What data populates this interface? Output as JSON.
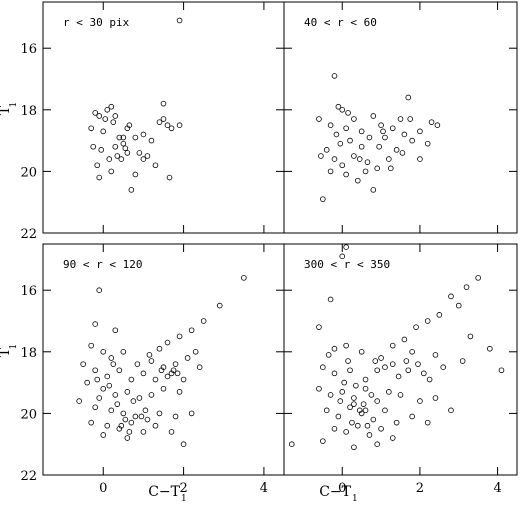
{
  "chart_data": {
    "type": "scatter",
    "layout": "2x2 grid of panels with shared axes",
    "xlabel": {
      "main": "C−T",
      "sub": "1"
    },
    "ylabel": {
      "main": "T",
      "sub": "1"
    },
    "xlim": [
      -1.5,
      4.5
    ],
    "ylim": [
      22,
      14.5
    ],
    "y_inverted": true,
    "xticks": [
      0,
      2,
      4
    ],
    "yticks": [
      16,
      18,
      20,
      22
    ],
    "xtick_labels": [
      "0",
      "2",
      "4"
    ],
    "ytick_labels": [
      "16",
      "18",
      "20",
      "22"
    ],
    "marker": "open-circle",
    "grid": false,
    "panels": [
      {
        "label": "r < 30 pix",
        "points": [
          [
            1.9,
            15.1
          ],
          [
            -0.2,
            18.1
          ],
          [
            -0.1,
            18.2
          ],
          [
            0.1,
            18.0
          ],
          [
            0.2,
            17.9
          ],
          [
            0.05,
            18.3
          ],
          [
            0.25,
            18.4
          ],
          [
            -0.3,
            18.6
          ],
          [
            0.0,
            18.7
          ],
          [
            0.4,
            18.9
          ],
          [
            0.5,
            19.1
          ],
          [
            0.55,
            19.25
          ],
          [
            0.6,
            19.4
          ],
          [
            0.3,
            19.2
          ],
          [
            0.15,
            19.6
          ],
          [
            -0.15,
            19.8
          ],
          [
            -0.05,
            19.3
          ],
          [
            0.35,
            19.5
          ],
          [
            0.6,
            18.6
          ],
          [
            0.8,
            18.9
          ],
          [
            1.0,
            18.8
          ],
          [
            1.2,
            19.0
          ],
          [
            1.1,
            19.5
          ],
          [
            1.3,
            19.8
          ],
          [
            1.4,
            18.4
          ],
          [
            1.5,
            18.3
          ],
          [
            1.6,
            18.5
          ],
          [
            1.7,
            18.6
          ],
          [
            1.5,
            17.8
          ],
          [
            1.9,
            18.5
          ],
          [
            1.65,
            20.2
          ],
          [
            0.7,
            20.6
          ],
          [
            0.2,
            20.0
          ],
          [
            -0.1,
            20.2
          ],
          [
            0.45,
            19.6
          ],
          [
            0.9,
            19.4
          ],
          [
            0.8,
            20.1
          ],
          [
            -0.25,
            19.2
          ],
          [
            0.65,
            18.5
          ],
          [
            1.0,
            19.6
          ],
          [
            0.3,
            18.2
          ],
          [
            0.5,
            18.9
          ]
        ]
      },
      {
        "label": "40 < r < 60",
        "points": [
          [
            -0.2,
            16.9
          ],
          [
            1.7,
            17.6
          ],
          [
            -0.6,
            18.3
          ],
          [
            -0.3,
            18.5
          ],
          [
            -0.1,
            17.9
          ],
          [
            0.0,
            18.0
          ],
          [
            0.1,
            18.6
          ],
          [
            0.3,
            18.3
          ],
          [
            0.5,
            18.7
          ],
          [
            0.2,
            19.0
          ],
          [
            -0.4,
            19.3
          ],
          [
            -0.2,
            19.6
          ],
          [
            0.0,
            19.8
          ],
          [
            0.3,
            19.5
          ],
          [
            0.5,
            19.2
          ],
          [
            0.7,
            18.9
          ],
          [
            0.8,
            18.2
          ],
          [
            1.0,
            18.5
          ],
          [
            1.1,
            18.9
          ],
          [
            1.3,
            18.6
          ],
          [
            1.5,
            18.3
          ],
          [
            1.6,
            18.8
          ],
          [
            1.8,
            19.0
          ],
          [
            2.0,
            18.7
          ],
          [
            2.3,
            18.4
          ],
          [
            2.2,
            19.1
          ],
          [
            2.0,
            19.6
          ],
          [
            1.4,
            19.3
          ],
          [
            1.2,
            19.6
          ],
          [
            0.9,
            19.9
          ],
          [
            0.6,
            20.0
          ],
          [
            0.4,
            20.3
          ],
          [
            0.1,
            20.1
          ],
          [
            -0.3,
            20.0
          ],
          [
            -0.55,
            19.5
          ],
          [
            -0.5,
            20.9
          ],
          [
            0.8,
            20.6
          ],
          [
            1.25,
            19.9
          ],
          [
            1.55,
            19.4
          ],
          [
            2.45,
            18.5
          ],
          [
            0.15,
            18.1
          ],
          [
            -0.15,
            18.8
          ],
          [
            0.45,
            19.6
          ],
          [
            0.95,
            19.2
          ],
          [
            1.75,
            18.3
          ],
          [
            0.65,
            19.7
          ],
          [
            -0.05,
            19.1
          ],
          [
            1.05,
            18.7
          ]
        ]
      },
      {
        "label": "90 < r < 120",
        "points": [
          [
            3.5,
            15.6
          ],
          [
            -0.1,
            16.0
          ],
          [
            2.9,
            16.5
          ],
          [
            -0.2,
            17.1
          ],
          [
            0.3,
            17.3
          ],
          [
            2.5,
            17.0
          ],
          [
            2.2,
            17.3
          ],
          [
            1.9,
            17.5
          ],
          [
            1.6,
            17.7
          ],
          [
            1.4,
            17.9
          ],
          [
            -0.3,
            17.8
          ],
          [
            0.0,
            18.0
          ],
          [
            0.2,
            18.2
          ],
          [
            0.5,
            18.0
          ],
          [
            1.2,
            18.3
          ],
          [
            1.5,
            18.5
          ],
          [
            1.8,
            18.4
          ],
          [
            2.1,
            18.2
          ],
          [
            2.3,
            18.0
          ],
          [
            -0.5,
            18.4
          ],
          [
            -0.2,
            18.6
          ],
          [
            0.1,
            18.8
          ],
          [
            0.4,
            18.6
          ],
          [
            0.7,
            18.9
          ],
          [
            1.0,
            18.7
          ],
          [
            1.3,
            18.9
          ],
          [
            1.7,
            18.7
          ],
          [
            2.0,
            18.9
          ],
          [
            -0.4,
            19.0
          ],
          [
            0.0,
            19.2
          ],
          [
            0.3,
            19.4
          ],
          [
            0.6,
            19.3
          ],
          [
            0.9,
            19.5
          ],
          [
            1.2,
            19.4
          ],
          [
            1.5,
            19.2
          ],
          [
            1.9,
            19.3
          ],
          [
            -0.6,
            19.6
          ],
          [
            -0.2,
            19.8
          ],
          [
            0.2,
            19.9
          ],
          [
            0.5,
            20.0
          ],
          [
            0.8,
            20.1
          ],
          [
            1.1,
            20.2
          ],
          [
            1.4,
            20.0
          ],
          [
            1.8,
            20.1
          ],
          [
            2.2,
            20.0
          ],
          [
            -0.3,
            20.3
          ],
          [
            0.1,
            20.4
          ],
          [
            0.4,
            20.5
          ],
          [
            0.7,
            20.3
          ],
          [
            1.0,
            20.6
          ],
          [
            1.3,
            20.4
          ],
          [
            0.6,
            20.8
          ],
          [
            1.7,
            20.6
          ],
          [
            2.0,
            21.0
          ],
          [
            0.0,
            20.7
          ],
          [
            -0.1,
            19.5
          ],
          [
            0.35,
            19.7
          ],
          [
            0.55,
            20.2
          ],
          [
            0.75,
            19.6
          ],
          [
            1.05,
            19.9
          ],
          [
            1.6,
            18.8
          ],
          [
            1.75,
            18.6
          ],
          [
            1.85,
            18.7
          ],
          [
            0.15,
            19.1
          ],
          [
            -0.15,
            18.9
          ],
          [
            0.25,
            18.4
          ],
          [
            0.85,
            18.4
          ],
          [
            1.15,
            18.1
          ],
          [
            1.45,
            18.6
          ],
          [
            2.4,
            18.5
          ],
          [
            0.45,
            20.4
          ],
          [
            0.65,
            20.6
          ],
          [
            0.95,
            20.1
          ]
        ]
      },
      {
        "label": "300 < r < 350",
        "points": [
          [
            0.1,
            14.6
          ],
          [
            0.0,
            14.9
          ],
          [
            3.5,
            15.6
          ],
          [
            3.2,
            15.9
          ],
          [
            2.8,
            16.2
          ],
          [
            3.0,
            16.5
          ],
          [
            -0.3,
            16.3
          ],
          [
            2.5,
            16.8
          ],
          [
            2.2,
            17.0
          ],
          [
            -0.6,
            17.2
          ],
          [
            1.9,
            17.2
          ],
          [
            1.6,
            17.6
          ],
          [
            1.3,
            17.8
          ],
          [
            3.3,
            17.5
          ],
          [
            3.8,
            17.9
          ],
          [
            -0.2,
            17.9
          ],
          [
            0.1,
            17.8
          ],
          [
            0.5,
            18.0
          ],
          [
            1.0,
            18.2
          ],
          [
            1.8,
            18.0
          ],
          [
            2.4,
            18.1
          ],
          [
            3.1,
            18.3
          ],
          [
            4.1,
            18.6
          ],
          [
            -0.5,
            18.5
          ],
          [
            -0.2,
            18.7
          ],
          [
            0.2,
            18.6
          ],
          [
            0.6,
            18.9
          ],
          [
            0.9,
            18.6
          ],
          [
            1.3,
            18.4
          ],
          [
            1.7,
            18.6
          ],
          [
            2.1,
            18.7
          ],
          [
            2.6,
            18.5
          ],
          [
            -0.6,
            19.2
          ],
          [
            -0.3,
            19.4
          ],
          [
            0.0,
            19.3
          ],
          [
            0.3,
            19.5
          ],
          [
            0.6,
            19.2
          ],
          [
            0.9,
            19.6
          ],
          [
            1.2,
            19.3
          ],
          [
            1.5,
            19.4
          ],
          [
            2.0,
            19.6
          ],
          [
            2.4,
            19.5
          ],
          [
            -0.4,
            19.9
          ],
          [
            -0.1,
            20.1
          ],
          [
            0.2,
            19.8
          ],
          [
            0.5,
            20.0
          ],
          [
            0.8,
            20.2
          ],
          [
            1.1,
            19.9
          ],
          [
            1.4,
            20.3
          ],
          [
            1.8,
            20.1
          ],
          [
            -0.2,
            20.5
          ],
          [
            0.1,
            20.6
          ],
          [
            0.4,
            20.4
          ],
          [
            0.7,
            20.7
          ],
          [
            1.0,
            20.5
          ],
          [
            1.3,
            20.8
          ],
          [
            -0.5,
            20.9
          ],
          [
            -1.3,
            21.0
          ],
          [
            0.3,
            21.1
          ],
          [
            0.9,
            21.0
          ],
          [
            2.2,
            20.3
          ],
          [
            2.8,
            19.9
          ],
          [
            0.05,
            19.0
          ],
          [
            0.35,
            19.1
          ],
          [
            0.55,
            19.7
          ],
          [
            0.75,
            19.4
          ],
          [
            0.25,
            20.3
          ],
          [
            0.45,
            19.9
          ],
          [
            0.65,
            20.4
          ],
          [
            -0.05,
            19.6
          ],
          [
            1.65,
            18.3
          ],
          [
            1.45,
            18.8
          ],
          [
            1.95,
            18.4
          ],
          [
            2.25,
            18.9
          ],
          [
            1.1,
            18.5
          ],
          [
            0.85,
            18.3
          ],
          [
            -0.35,
            18.1
          ],
          [
            0.15,
            18.3
          ],
          [
            0.6,
            19.9
          ],
          [
            0.3,
            19.7
          ]
        ]
      }
    ]
  }
}
